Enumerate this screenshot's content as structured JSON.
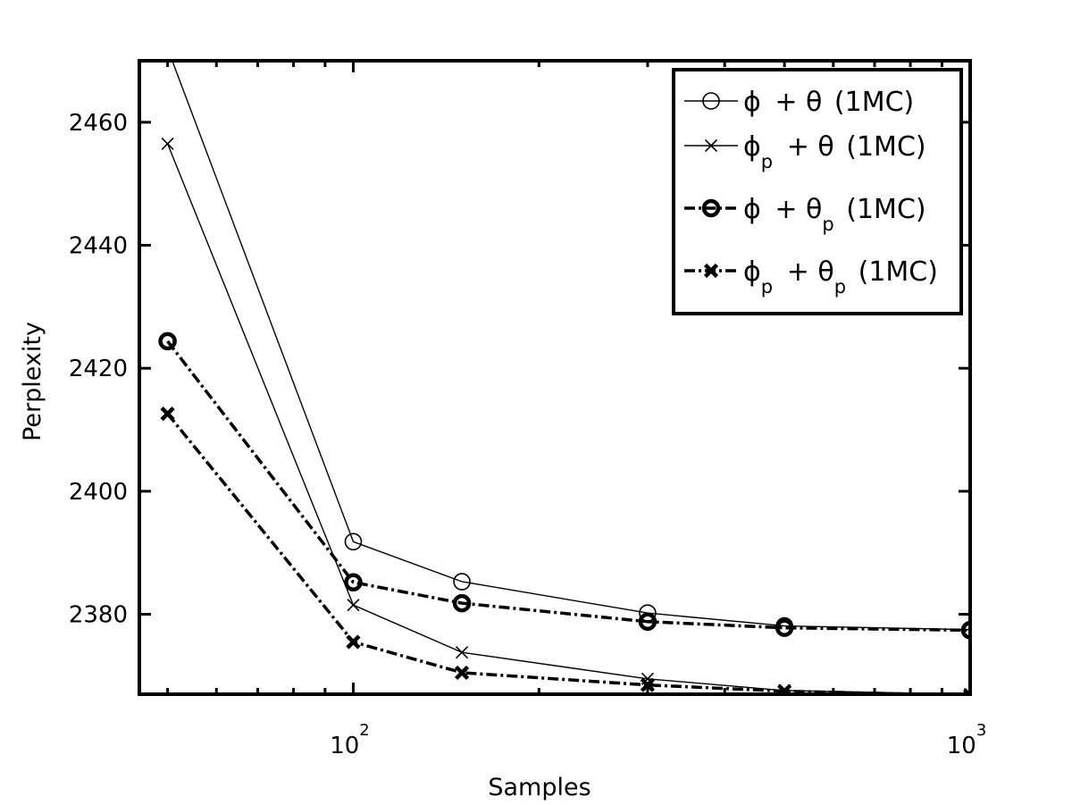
{
  "chart_data": {
    "type": "line",
    "xscale": "log",
    "xlabel": "Samples",
    "ylabel": "Perplexity",
    "xlim": [
      45,
      1000
    ],
    "ylim": [
      2367,
      2470
    ],
    "xticks": [
      {
        "value": 100,
        "base": "10",
        "exp": "2"
      },
      {
        "value": 1000,
        "base": "10",
        "exp": "3"
      }
    ],
    "yticks": [
      2380,
      2400,
      2420,
      2440,
      2460
    ],
    "grid": false,
    "legend_position": "top-right",
    "x": [
      50,
      100,
      150,
      300,
      500,
      1000
    ],
    "series": [
      {
        "id": "phi-theta",
        "legend": {
          "main": "ϕ",
          "main_sub": "",
          "plus": "+ θ",
          "plus_sub": "",
          "suffix": "(1MC)"
        },
        "marker": "circle",
        "style": "solid",
        "bold": false,
        "values": [
          2472,
          2391.8,
          2385.3,
          2380.2,
          2378.1,
          2377.5
        ]
      },
      {
        "id": "phip-theta",
        "legend": {
          "main": "ϕ",
          "main_sub": "p",
          "plus": "+ θ",
          "plus_sub": "",
          "suffix": "(1MC)"
        },
        "marker": "x",
        "style": "solid",
        "bold": false,
        "values": [
          2456.5,
          2381.5,
          2373.8,
          2369.5,
          2367.6,
          2367
        ]
      },
      {
        "id": "phi-thetap",
        "legend": {
          "main": "ϕ",
          "main_sub": "",
          "plus": "+ θ",
          "plus_sub": "p",
          "suffix": "(1MC)"
        },
        "marker": "circle",
        "style": "dashdot",
        "bold": true,
        "values": [
          2424.4,
          2385.2,
          2381.8,
          2378.8,
          2377.8,
          2377.4
        ]
      },
      {
        "id": "phip-thetap",
        "legend": {
          "main": "ϕ",
          "main_sub": "p",
          "plus": "+ θ",
          "plus_sub": "p",
          "suffix": "(1MC)"
        },
        "marker": "x",
        "style": "dashdot",
        "bold": true,
        "values": [
          2412.6,
          2375.5,
          2370.5,
          2368.5,
          2367.5,
          2366.8
        ]
      }
    ]
  }
}
